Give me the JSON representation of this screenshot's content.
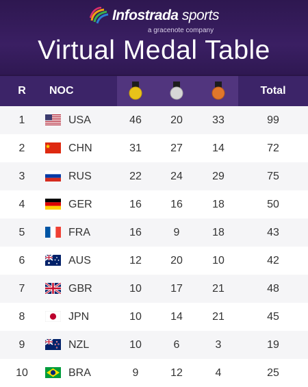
{
  "brand": {
    "name_bold": "Infostrada",
    "name_thin": " sports",
    "tagline": "a gracenote company"
  },
  "title": "Virtual Medal Table",
  "headers": {
    "rank": "R",
    "noc": "NOC",
    "total": "Total"
  },
  "medal_colors": {
    "gold": "#e8c21a",
    "silver": "#c9c9c9",
    "bronze": "#e0772b"
  },
  "rows": [
    {
      "rank": "1",
      "flag": "usa",
      "code": "USA",
      "gold": "46",
      "silver": "20",
      "bronze": "33",
      "total": "99"
    },
    {
      "rank": "2",
      "flag": "chn",
      "code": "CHN",
      "gold": "31",
      "silver": "27",
      "bronze": "14",
      "total": "72"
    },
    {
      "rank": "3",
      "flag": "rus",
      "code": "RUS",
      "gold": "22",
      "silver": "24",
      "bronze": "29",
      "total": "75"
    },
    {
      "rank": "4",
      "flag": "ger",
      "code": "GER",
      "gold": "16",
      "silver": "16",
      "bronze": "18",
      "total": "50"
    },
    {
      "rank": "5",
      "flag": "fra",
      "code": "FRA",
      "gold": "16",
      "silver": "9",
      "bronze": "18",
      "total": "43"
    },
    {
      "rank": "6",
      "flag": "aus",
      "code": "AUS",
      "gold": "12",
      "silver": "20",
      "bronze": "10",
      "total": "42"
    },
    {
      "rank": "7",
      "flag": "gbr",
      "code": "GBR",
      "gold": "10",
      "silver": "17",
      "bronze": "21",
      "total": "48"
    },
    {
      "rank": "8",
      "flag": "jpn",
      "code": "JPN",
      "gold": "10",
      "silver": "14",
      "bronze": "21",
      "total": "45"
    },
    {
      "rank": "9",
      "flag": "nzl",
      "code": "NZL",
      "gold": "10",
      "silver": "6",
      "bronze": "3",
      "total": "19"
    },
    {
      "rank": "10",
      "flag": "bra",
      "code": "BRA",
      "gold": "9",
      "silver": "12",
      "bronze": "4",
      "total": "25"
    }
  ]
}
